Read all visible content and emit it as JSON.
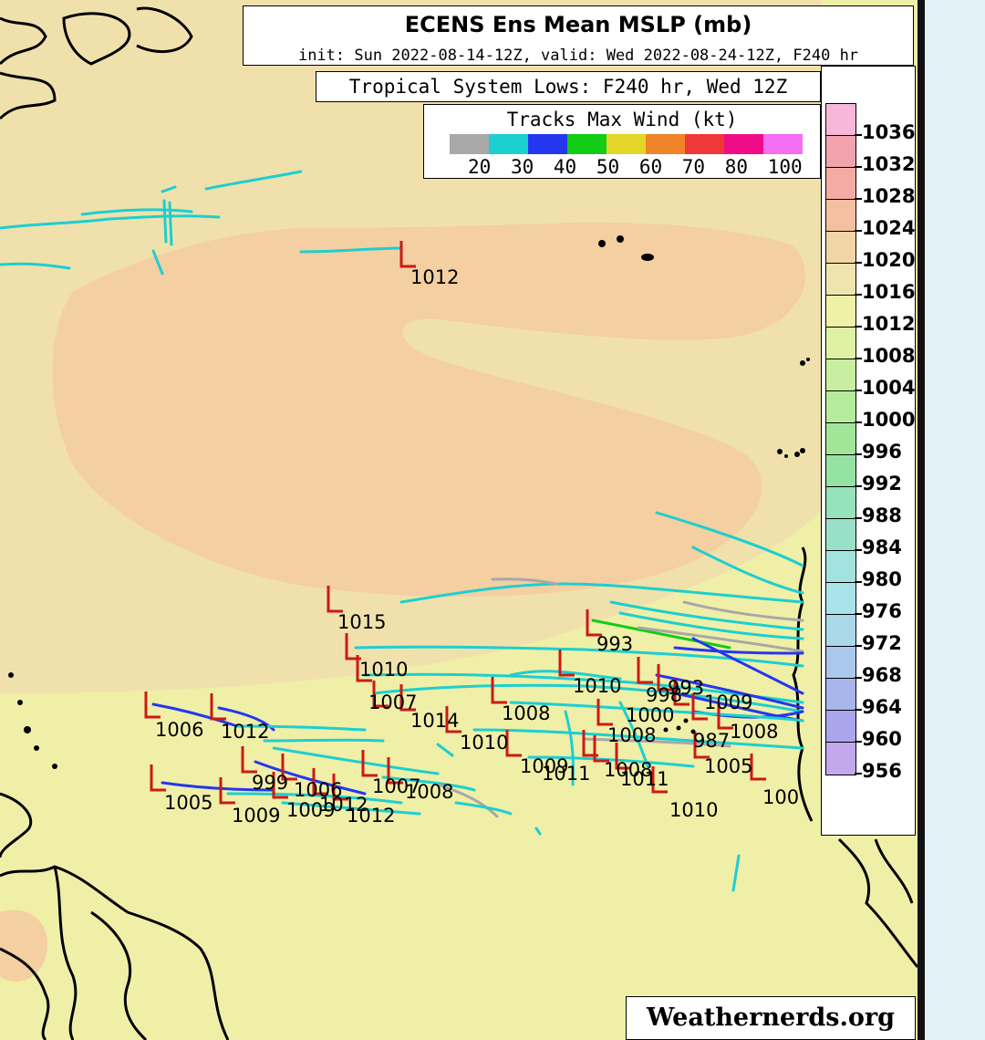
{
  "title": "ECENS Ens Mean MSLP (mb)",
  "subtitle": "init: Sun 2022-08-14-12Z, valid: Wed 2022-08-24-12Z, F240 hr",
  "lows_box": "Tropical System Lows: F240 hr, Wed 12Z",
  "wind_legend": {
    "title": "Tracks Max Wind (kt)",
    "colors": [
      "#a8a8a8",
      "#1ccfd0",
      "#2436f0",
      "#12cc16",
      "#e2d629",
      "#f08428",
      "#f03838",
      "#f00c86",
      "#f46ef4"
    ],
    "labels": [
      "20",
      "30",
      "40",
      "50",
      "60",
      "70",
      "80",
      "100"
    ]
  },
  "pressure_legend": {
    "labels": [
      "1036",
      "1032",
      "1028",
      "1024",
      "1020",
      "1016",
      "1012",
      "1008",
      "1004",
      "1000",
      "996",
      "992",
      "988",
      "984",
      "980",
      "976",
      "972",
      "968",
      "964",
      "960",
      "956"
    ],
    "colors": [
      "#f7b7d8",
      "#f2a3ad",
      "#f4aca2",
      "#f5c0a2",
      "#f2d5a6",
      "#efe4ad",
      "#eef1a6",
      "#dff2a4",
      "#c7ef9f",
      "#b5ec9c",
      "#a1e698",
      "#95e3a2",
      "#95e2bb",
      "#98e0c8",
      "#a2e3df",
      "#a8e3ea",
      "#aad7e9",
      "#aac7ec",
      "#a8b6ec",
      "#aaa6ec",
      "#c3a8ec"
    ]
  },
  "low_labels": [
    {
      "text": "1012"
    },
    {
      "text": "1015"
    },
    {
      "text": "1010"
    },
    {
      "text": "1007"
    },
    {
      "text": "1014"
    },
    {
      "text": "1008"
    },
    {
      "text": "1010"
    },
    {
      "text": "993"
    },
    {
      "text": "1010"
    },
    {
      "text": "998"
    },
    {
      "text": "993"
    },
    {
      "text": "1009"
    },
    {
      "text": "1000"
    },
    {
      "text": "1008"
    },
    {
      "text": "987"
    },
    {
      "text": "1008"
    },
    {
      "text": "1005"
    },
    {
      "text": "1006"
    },
    {
      "text": "1012"
    },
    {
      "text": "1005"
    },
    {
      "text": "1009"
    },
    {
      "text": "999"
    },
    {
      "text": "1006"
    },
    {
      "text": "1009"
    },
    {
      "text": "1012"
    },
    {
      "text": "1012"
    },
    {
      "text": "1007"
    },
    {
      "text": "1008"
    },
    {
      "text": "1009"
    },
    {
      "text": "1011"
    },
    {
      "text": "1008"
    },
    {
      "text": "1011"
    },
    {
      "text": "1010"
    },
    {
      "text": "100"
    }
  ],
  "credit": "Weathernerds.org",
  "colors": {
    "background": "#efefa8",
    "high_pressure": "#f3cfa2",
    "mid_pressure": "#f0e1ac",
    "track_30kt": "#1ccfd0",
    "track_40kt": "#2436f0",
    "low_marker": "#cc1a14"
  }
}
